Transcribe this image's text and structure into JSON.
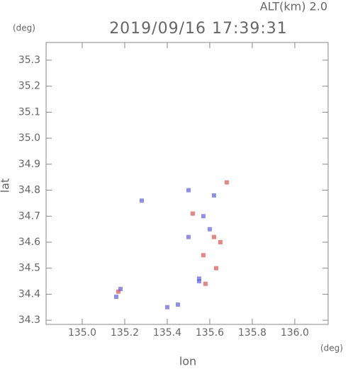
{
  "altitude_label": "ALT(km) 2.0",
  "chart_data": {
    "type": "scatter",
    "title": "2019/09/16 17:39:31",
    "x_label": "lon",
    "y_label": "lat",
    "x_unit": "(deg)",
    "y_unit": "(deg)",
    "xlim": [
      134.83,
      136.157
    ],
    "ylim": [
      34.284,
      35.368
    ],
    "xticks": [
      {
        "value": 135,
        "label": "135.0"
      },
      135.2,
      135.4,
      135.6,
      135.8,
      {
        "value": 136,
        "label": "136.0"
      }
    ],
    "yticks": [
      34.3,
      34.4,
      34.5,
      34.6,
      34.7,
      34.8,
      34.9,
      {
        "value": 35,
        "label": "35.0"
      },
      35.1,
      35.2,
      35.3
    ],
    "series": [
      {
        "color": "#e05050",
        "x": [
          135.57,
          135.62,
          135.58,
          135.17,
          135.65,
          135.52,
          135.68,
          135.63
        ],
        "y": [
          34.55,
          34.62,
          34.44,
          34.41,
          34.6,
          34.71,
          34.83,
          34.5
        ]
      },
      {
        "color": "#6060e0",
        "x": [
          135.16,
          135.18,
          135.55,
          135.5,
          135.6,
          135.45,
          135.4,
          135.28,
          135.62,
          135.5,
          135.55,
          135.57
        ],
        "y": [
          34.39,
          34.42,
          34.45,
          34.62,
          34.65,
          34.36,
          34.35,
          34.76,
          34.78,
          34.8,
          34.46,
          34.7
        ]
      }
    ]
  }
}
